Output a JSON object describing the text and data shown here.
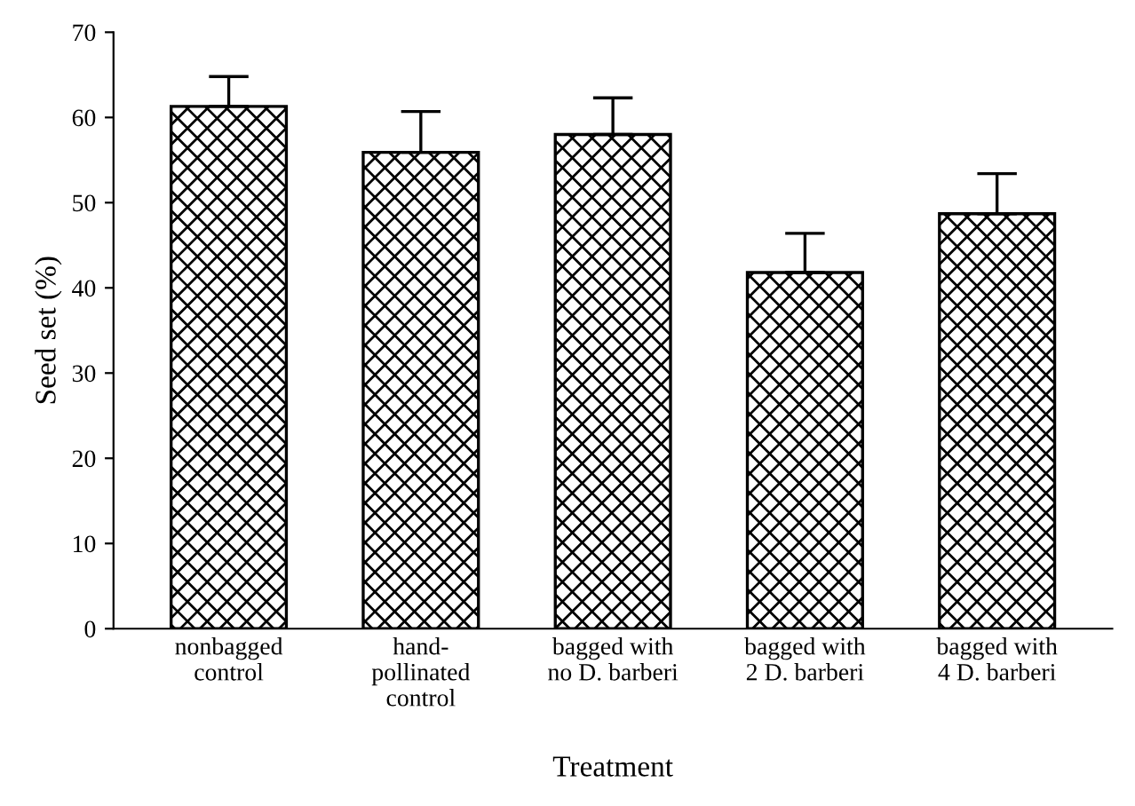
{
  "chart_data": {
    "type": "bar",
    "xlabel": "Treatment",
    "ylabel": "Seed set (%)",
    "categories": [
      "nonbagged\ncontrol",
      "hand-\npollinated\ncontrol",
      "bagged with\nno D. barberi",
      "bagged with\n2 D. barberi",
      "bagged with\n4 D. barberi"
    ],
    "values": [
      61.3,
      55.9,
      58.0,
      41.8,
      48.7
    ],
    "errors": [
      [
        61.3,
        64.8
      ],
      [
        55.9,
        60.7
      ],
      [
        58.0,
        62.3
      ],
      [
        41.8,
        46.4
      ],
      [
        48.7,
        53.4
      ]
    ],
    "color": "#000000",
    "ylim": [
      0,
      70
    ],
    "yticks": [
      0,
      10,
      20,
      30,
      40,
      50,
      60,
      70
    ],
    "grid": false
  }
}
